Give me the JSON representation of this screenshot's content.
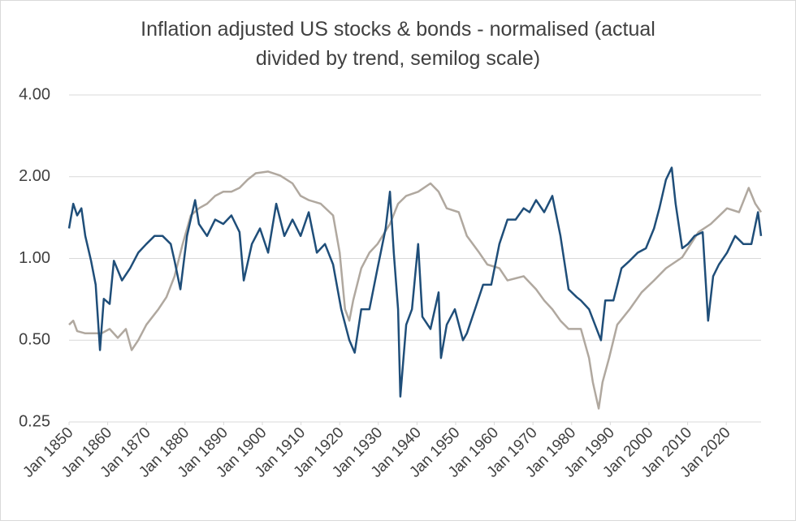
{
  "chart_data": {
    "type": "line",
    "title": [
      "Inflation adjusted US stocks & bonds - normalised (actual",
      "divided by trend, semilog scale)"
    ],
    "log_y": true,
    "grid": true,
    "xlim": [
      1850,
      2029
    ],
    "ylim": [
      0.25,
      4
    ],
    "yticks": [
      {
        "value": 0.25,
        "label": "0.25"
      },
      {
        "value": 0.5,
        "label": "0.50"
      },
      {
        "value": 1,
        "label": "1.00"
      },
      {
        "value": 2,
        "label": "2.00"
      },
      {
        "value": 4,
        "label": "4.00"
      }
    ],
    "xticks": [
      {
        "value": 1850,
        "label": "Jan 1850"
      },
      {
        "value": 1860,
        "label": "Jan 1860"
      },
      {
        "value": 1870,
        "label": "Jan 1870"
      },
      {
        "value": 1880,
        "label": "Jan 1880"
      },
      {
        "value": 1890,
        "label": "Jan 1890"
      },
      {
        "value": 1900,
        "label": "Jan 1900"
      },
      {
        "value": 1910,
        "label": "Jan 1910"
      },
      {
        "value": 1920,
        "label": "Jan 1920"
      },
      {
        "value": 1930,
        "label": "Jan 1930"
      },
      {
        "value": 1940,
        "label": "Jan 1940"
      },
      {
        "value": 1950,
        "label": "Jan 1950"
      },
      {
        "value": 1960,
        "label": "Jan 1960"
      },
      {
        "value": 1970,
        "label": "Jan 1970"
      },
      {
        "value": 1980,
        "label": "Jan 1980"
      },
      {
        "value": 1990,
        "label": "Jan 1990"
      },
      {
        "value": 2000,
        "label": "Jan 2000"
      },
      {
        "value": 2010,
        "label": "Jan 2010"
      },
      {
        "value": 2020,
        "label": "Jan 2020"
      }
    ],
    "series": [
      {
        "color": "#b0a89f",
        "x": [
          1850,
          1851.1,
          1852.1,
          1854.2,
          1856.3,
          1858.4,
          1860.5,
          1862.6,
          1864.7,
          1866.2,
          1867.9,
          1870.0,
          1873.1,
          1875.2,
          1877.3,
          1879.4,
          1881.5,
          1883.6,
          1885.7,
          1887.8,
          1889.9,
          1892.0,
          1894.1,
          1896.2,
          1898.3,
          1901.5,
          1904.6,
          1907.8,
          1909.9,
          1912.0,
          1915.1,
          1918.3,
          1920.0,
          1921.4,
          1922.5,
          1923.5,
          1925.6,
          1927.7,
          1929.8,
          1933.0,
          1935.1,
          1937.2,
          1940.3,
          1943.5,
          1945.6,
          1947.7,
          1950.8,
          1952.9,
          1956.1,
          1958.2,
          1961.3,
          1963.4,
          1967.6,
          1970.8,
          1972.9,
          1975.0,
          1977.1,
          1979.2,
          1982.4,
          1984.5,
          1985.5,
          1987.0,
          1988.0,
          1989.7,
          1991.8,
          1995.0,
          1998.1,
          2001.3,
          2004.4,
          2008.6,
          2012.8,
          2016.0,
          2020.2,
          2023.3,
          2025.8,
          2027.5,
          2029.0
        ],
        "values": [
          0.57,
          0.59,
          0.54,
          0.53,
          0.53,
          0.53,
          0.55,
          0.51,
          0.55,
          0.46,
          0.5,
          0.57,
          0.65,
          0.72,
          0.86,
          1.13,
          1.44,
          1.53,
          1.59,
          1.7,
          1.76,
          1.76,
          1.82,
          1.95,
          2.06,
          2.09,
          2.02,
          1.89,
          1.7,
          1.64,
          1.59,
          1.44,
          1.05,
          0.65,
          0.59,
          0.7,
          0.92,
          1.05,
          1.13,
          1.34,
          1.59,
          1.7,
          1.76,
          1.89,
          1.76,
          1.53,
          1.48,
          1.21,
          1.05,
          0.95,
          0.92,
          0.83,
          0.86,
          0.77,
          0.7,
          0.65,
          0.59,
          0.55,
          0.55,
          0.43,
          0.35,
          0.28,
          0.35,
          0.43,
          0.57,
          0.65,
          0.75,
          0.83,
          0.92,
          1.01,
          1.25,
          1.34,
          1.53,
          1.48,
          1.82,
          1.59,
          1.48
        ]
      },
      {
        "color": "#1f4e79",
        "x": [
          1850,
          1851.1,
          1852.1,
          1853.2,
          1854.2,
          1855.7,
          1856.9,
          1858.0,
          1859.0,
          1860.5,
          1861.6,
          1863.7,
          1865.8,
          1867.9,
          1870.0,
          1872.1,
          1874.2,
          1876.3,
          1877.3,
          1878.8,
          1880.5,
          1882.6,
          1883.6,
          1885.7,
          1887.8,
          1889.9,
          1892.0,
          1894.1,
          1895.2,
          1897.3,
          1899.4,
          1901.5,
          1903.6,
          1905.7,
          1907.8,
          1909.9,
          1912.0,
          1914.1,
          1916.2,
          1918.3,
          1920.4,
          1922.5,
          1923.9,
          1925.6,
          1927.7,
          1929.8,
          1931.9,
          1933.0,
          1934.0,
          1935.1,
          1935.7,
          1937.2,
          1938.7,
          1940.3,
          1941.4,
          1943.5,
          1945.6,
          1946.2,
          1947.7,
          1949.8,
          1951.9,
          1952.9,
          1955.0,
          1957.1,
          1959.2,
          1961.3,
          1963.4,
          1965.5,
          1967.6,
          1969.1,
          1970.8,
          1972.9,
          1975.0,
          1977.1,
          1979.2,
          1981.3,
          1982.4,
          1984.5,
          1987.6,
          1988.7,
          1990.8,
          1992.9,
          1995.0,
          1997.1,
          1999.2,
          2001.3,
          2002.7,
          2004.4,
          2005.9,
          2006.9,
          2008.6,
          2010.1,
          2011.8,
          2013.9,
          2015.3,
          2016.6,
          2018.1,
          2020.2,
          2022.3,
          2024.4,
          2026.5,
          2028.2,
          2029.0
        ],
        "values": [
          1.29,
          1.59,
          1.44,
          1.53,
          1.21,
          0.98,
          0.8,
          0.46,
          0.71,
          0.68,
          0.98,
          0.83,
          0.92,
          1.05,
          1.13,
          1.21,
          1.21,
          1.13,
          0.98,
          0.77,
          1.21,
          1.64,
          1.34,
          1.21,
          1.39,
          1.34,
          1.44,
          1.25,
          0.83,
          1.13,
          1.29,
          1.05,
          1.59,
          1.21,
          1.39,
          1.21,
          1.48,
          1.05,
          1.13,
          0.95,
          0.65,
          0.5,
          0.45,
          0.65,
          0.65,
          0.92,
          1.29,
          1.76,
          1.05,
          0.65,
          0.31,
          0.57,
          0.65,
          1.13,
          0.61,
          0.55,
          0.75,
          0.43,
          0.57,
          0.65,
          0.5,
          0.53,
          0.65,
          0.8,
          0.8,
          1.13,
          1.39,
          1.39,
          1.53,
          1.48,
          1.64,
          1.48,
          1.7,
          1.21,
          0.77,
          0.72,
          0.7,
          0.65,
          0.5,
          0.7,
          0.7,
          0.92,
          0.98,
          1.05,
          1.09,
          1.29,
          1.53,
          1.95,
          2.16,
          1.59,
          1.09,
          1.13,
          1.21,
          1.25,
          0.59,
          0.86,
          0.95,
          1.05,
          1.21,
          1.13,
          1.13,
          1.48,
          1.21
        ]
      }
    ]
  }
}
